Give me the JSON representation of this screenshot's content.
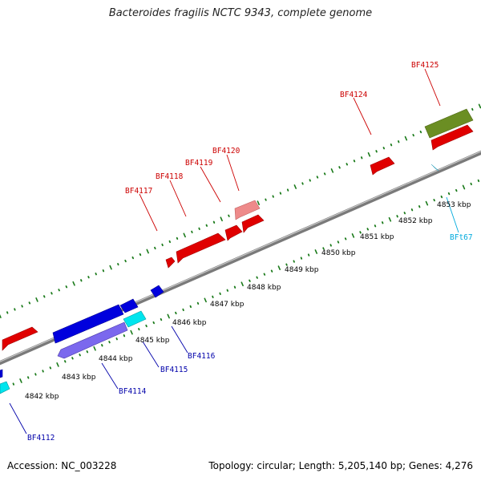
{
  "title": "Bacteroides fragilis NCTC 9343, complete genome",
  "footer": {
    "accession": "Accession: NC_003228",
    "summary": "Topology: circular; Length: 5,205,140 bp; Genes: 4,276"
  },
  "colors": {
    "forward_gene": "#ee0000",
    "forward_gene_light": "#ee8a8a",
    "forward_rna": "#6b8e23",
    "reverse_gene": "#0000dd",
    "reverse_gene_light": "#00e5ee",
    "reverse_rna": "#7b68ee",
    "backbone": "#888888",
    "ticks": "#1a7a1a",
    "forward_label": "#cc0000",
    "reverse_label": "#0000aa",
    "cyan_label": "#00aadd"
  },
  "ticks": [
    {
      "label": "4842 kbp"
    },
    {
      "label": "4843 kbp"
    },
    {
      "label": "4844 kbp"
    },
    {
      "label": "4845 kbp"
    },
    {
      "label": "4846 kbp"
    },
    {
      "label": "4847 kbp"
    },
    {
      "label": "4848 kbp"
    },
    {
      "label": "4849 kbp"
    },
    {
      "label": "4850 kbp"
    },
    {
      "label": "4851 kbp"
    },
    {
      "label": "4852 kbp"
    },
    {
      "label": "4853 kbp"
    }
  ],
  "gene_labels": {
    "forward": [
      "BF4117",
      "BF4118",
      "BF4119",
      "BF4120",
      "BF4124",
      "BF4125"
    ],
    "reverse": [
      "BF4112",
      "BF4114",
      "BF4115",
      "BF4116"
    ],
    "rna": [
      "BFt67"
    ]
  }
}
